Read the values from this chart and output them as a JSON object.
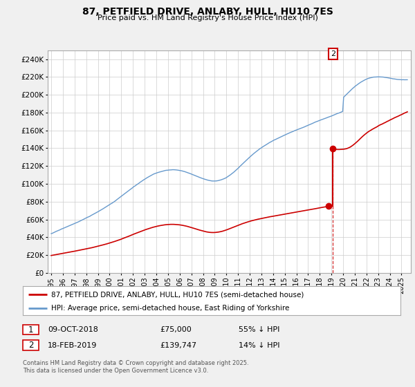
{
  "title": "87, PETFIELD DRIVE, ANLABY, HULL, HU10 7ES",
  "subtitle": "Price paid vs. HM Land Registry's House Price Index (HPI)",
  "ylabel_ticks": [
    "£0",
    "£20K",
    "£40K",
    "£60K",
    "£80K",
    "£100K",
    "£120K",
    "£140K",
    "£160K",
    "£180K",
    "£200K",
    "£220K",
    "£240K"
  ],
  "ytick_values": [
    0,
    20000,
    40000,
    60000,
    80000,
    100000,
    120000,
    140000,
    160000,
    180000,
    200000,
    220000,
    240000
  ],
  "ylim": [
    0,
    250000
  ],
  "bg_color": "#f0f0f0",
  "plot_bg": "#ffffff",
  "red_color": "#cc0000",
  "blue_color": "#6699cc",
  "sale1_year": 2018.77,
  "sale1_price": 75000,
  "sale2_year": 2019.12,
  "sale2_price": 139747,
  "legend_line1": "87, PETFIELD DRIVE, ANLABY, HULL, HU10 7ES (semi-detached house)",
  "legend_line2": "HPI: Average price, semi-detached house, East Riding of Yorkshire",
  "footnote": "Contains HM Land Registry data © Crown copyright and database right 2025.\nThis data is licensed under the Open Government Licence v3.0.",
  "table_row1": [
    "1",
    "09-OCT-2018",
    "£75,000",
    "55% ↓ HPI"
  ],
  "table_row2": [
    "2",
    "18-FEB-2019",
    "£139,747",
    "14% ↓ HPI"
  ]
}
